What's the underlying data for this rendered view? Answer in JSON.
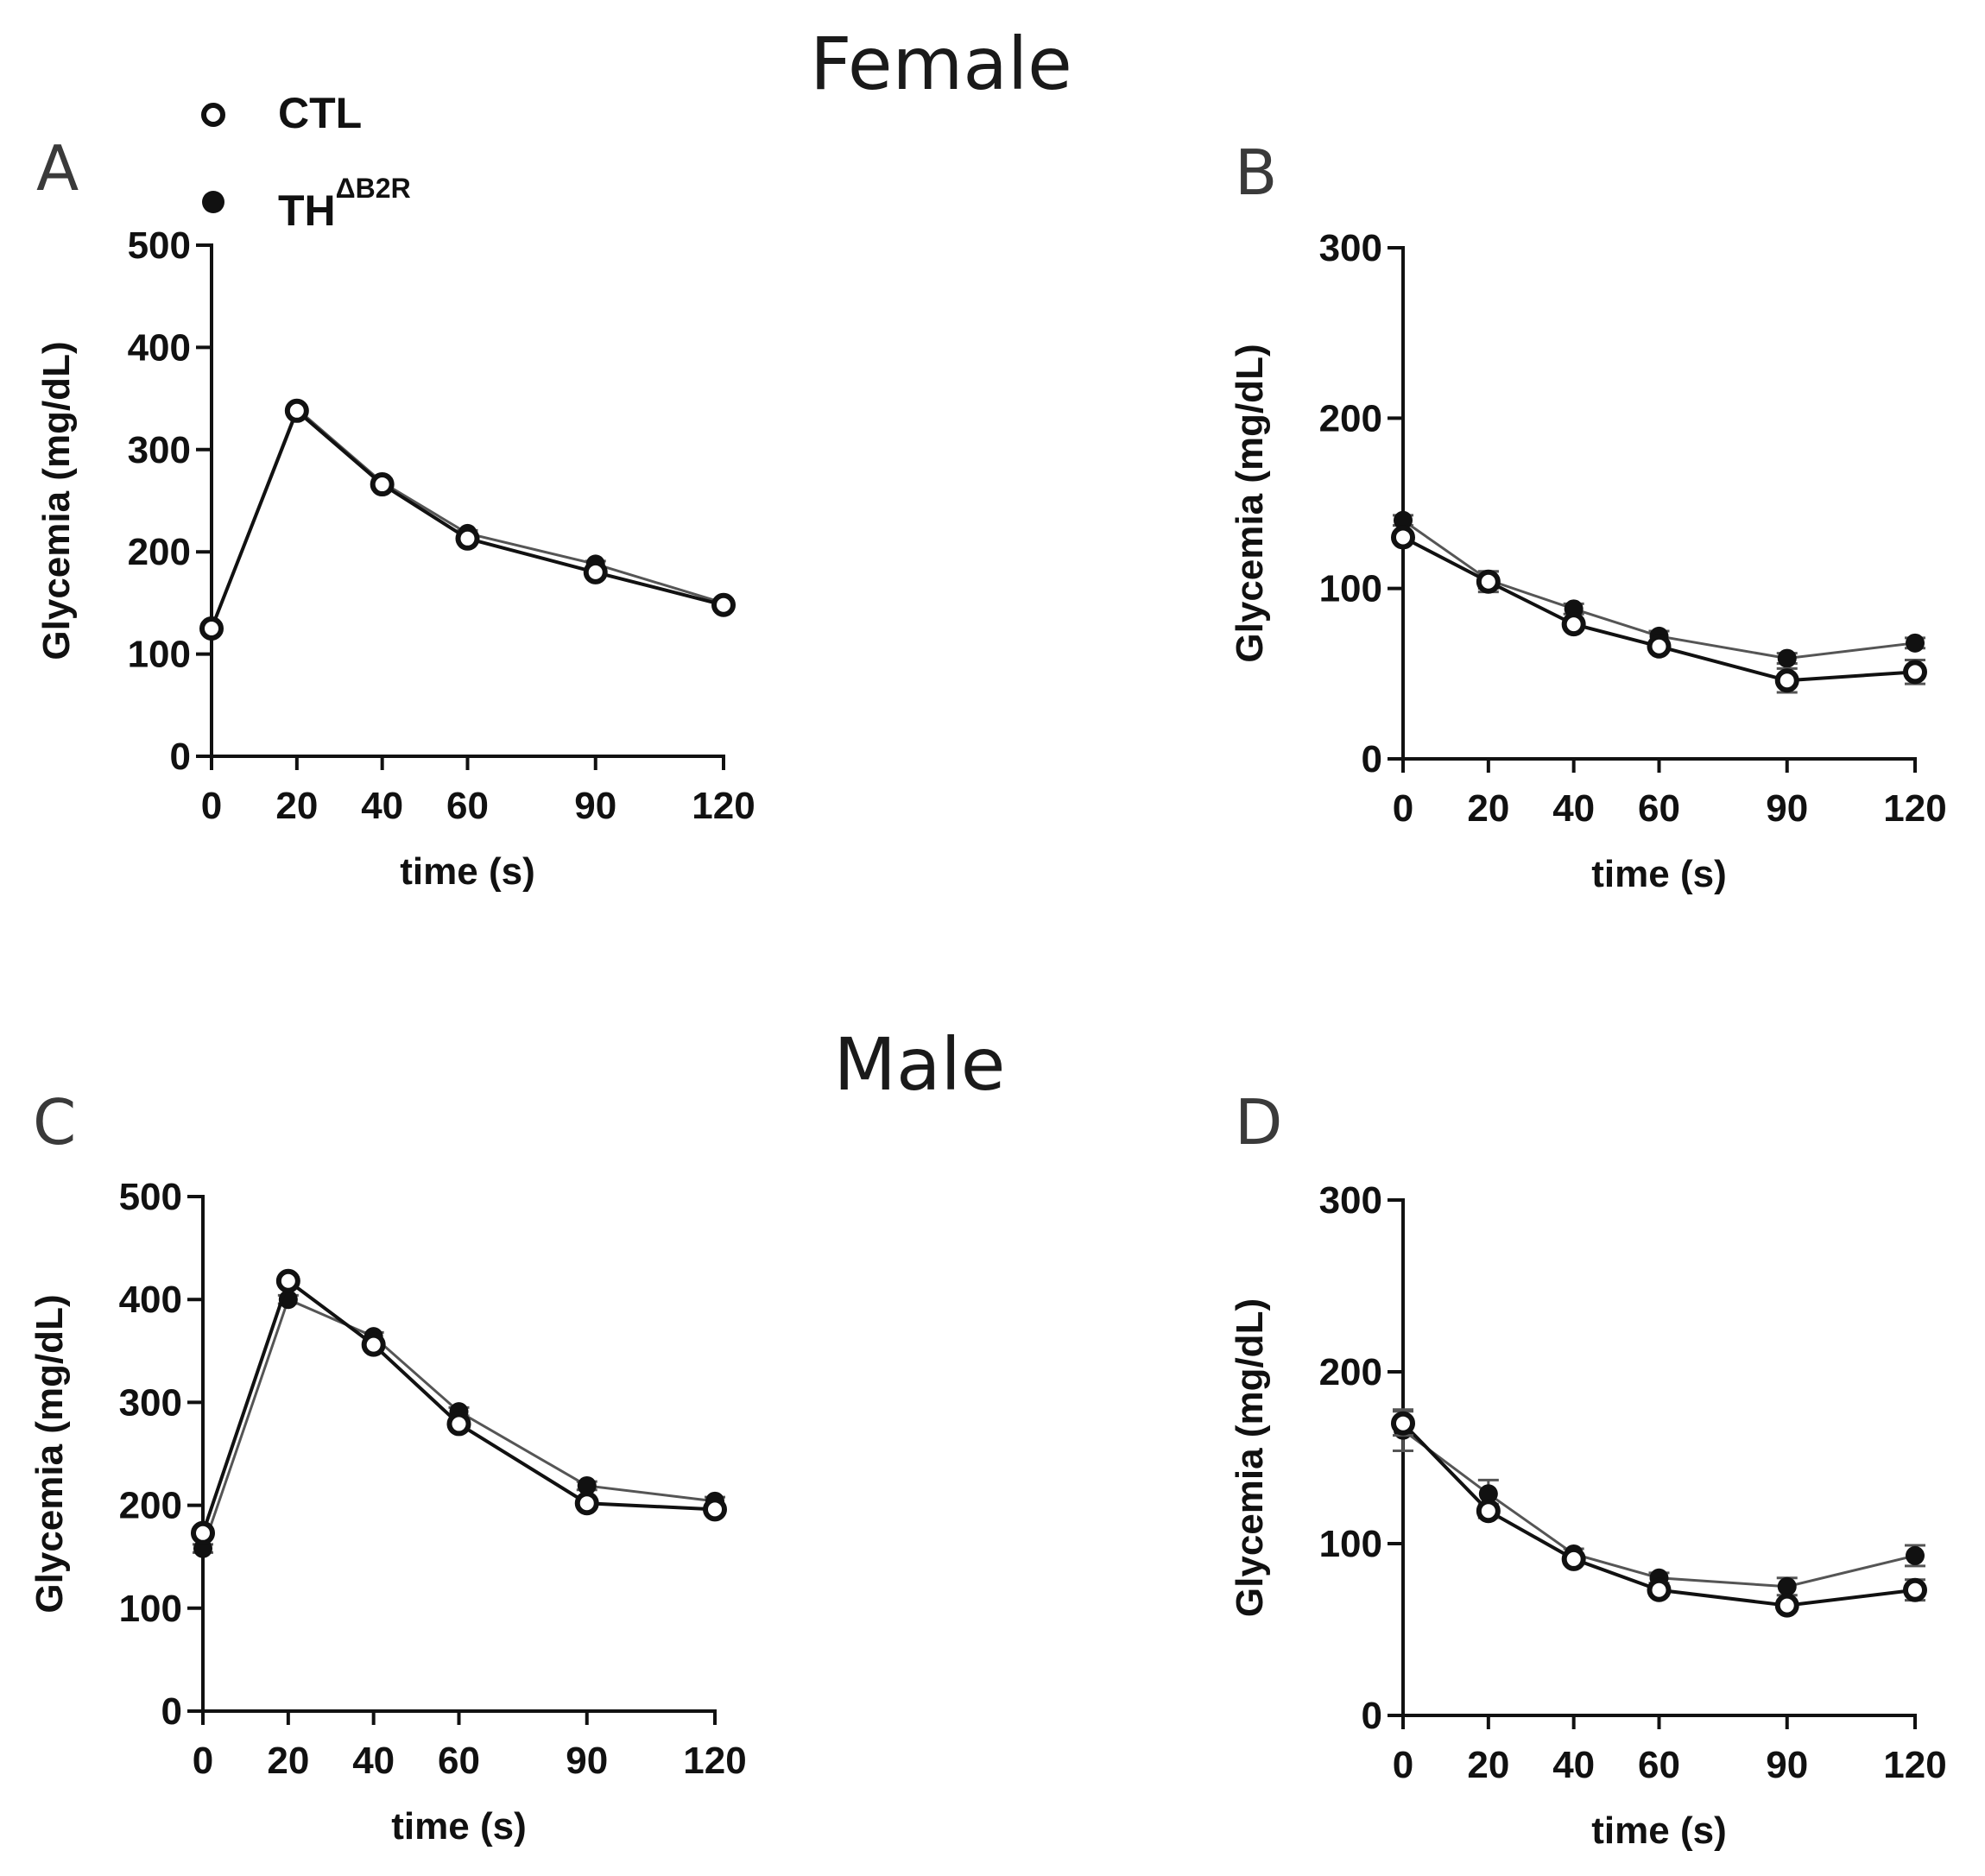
{
  "headings": {
    "female": "Female",
    "male": "Male"
  },
  "legend": {
    "ctl": {
      "label": "CTL"
    },
    "th": {
      "label": "TH",
      "superscript": "ΔB2R"
    }
  },
  "colors": {
    "ink": "#111111",
    "thin_line": "#555555"
  },
  "chart_data": [
    {
      "id": "A",
      "letter": "A",
      "type": "line",
      "xlabel": "time (s)",
      "ylabel": "Glycemia (mg/dL)",
      "ylim": [
        0,
        500
      ],
      "yticks": [
        0,
        100,
        200,
        300,
        400,
        500
      ],
      "xlim": [
        0,
        120
      ],
      "xticks": [
        0,
        20,
        40,
        60,
        90,
        120
      ],
      "grid": false,
      "series": [
        {
          "name": "CTL",
          "marker": "open",
          "x": [
            0,
            20,
            40,
            60,
            90,
            120
          ],
          "values": [
            125,
            338,
            266,
            213,
            180,
            148
          ],
          "err": [
            3,
            3,
            3,
            3,
            3,
            3
          ]
        },
        {
          "name": "THΔB2R",
          "marker": "filled",
          "x": [
            0,
            20,
            40,
            60,
            90,
            120
          ],
          "values": [
            125,
            340,
            268,
            218,
            188,
            150
          ],
          "err": [
            3,
            3,
            3,
            3,
            3,
            3
          ]
        }
      ]
    },
    {
      "id": "B",
      "letter": "B",
      "type": "line",
      "xlabel": "time (s)",
      "ylabel": "Glycemia (mg/dL)",
      "ylim": [
        0,
        300
      ],
      "yticks": [
        0,
        100,
        200,
        300
      ],
      "xlim": [
        0,
        120
      ],
      "xticks": [
        0,
        20,
        40,
        60,
        90,
        120
      ],
      "grid": false,
      "series": [
        {
          "name": "CTL",
          "marker": "open",
          "x": [
            0,
            20,
            40,
            60,
            90,
            120
          ],
          "values": [
            130,
            104,
            79,
            66,
            46,
            51
          ],
          "err": [
            3,
            6,
            3,
            3,
            7,
            7
          ]
        },
        {
          "name": "THΔB2R",
          "marker": "filled",
          "x": [
            0,
            20,
            40,
            60,
            90,
            120
          ],
          "values": [
            140,
            105,
            88,
            72,
            59,
            68
          ],
          "err": [
            3,
            5,
            3,
            3,
            3,
            3
          ]
        }
      ]
    },
    {
      "id": "C",
      "letter": "C",
      "type": "line",
      "xlabel": "time (s)",
      "ylabel": "Glycemia (mg/dL)",
      "ylim": [
        0,
        500
      ],
      "yticks": [
        0,
        100,
        200,
        300,
        400,
        500
      ],
      "xlim": [
        0,
        120
      ],
      "xticks": [
        0,
        20,
        40,
        60,
        90,
        120
      ],
      "grid": false,
      "series": [
        {
          "name": "CTL",
          "marker": "open",
          "x": [
            0,
            20,
            40,
            60,
            90,
            120
          ],
          "values": [
            173,
            418,
            356,
            279,
            202,
            196
          ],
          "err": [
            4,
            4,
            4,
            4,
            4,
            4
          ]
        },
        {
          "name": "THΔB2R",
          "marker": "filled",
          "x": [
            0,
            20,
            40,
            60,
            90,
            120
          ],
          "values": [
            158,
            400,
            364,
            291,
            219,
            204
          ],
          "err": [
            4,
            4,
            4,
            4,
            4,
            4
          ]
        }
      ]
    },
    {
      "id": "D",
      "letter": "D",
      "type": "line",
      "xlabel": "time (s)",
      "ylabel": "Glycemia (mg/dL)",
      "ylim": [
        0,
        300
      ],
      "yticks": [
        0,
        100,
        200,
        300
      ],
      "xlim": [
        0,
        120
      ],
      "xticks": [
        0,
        20,
        40,
        60,
        90,
        120
      ],
      "grid": false,
      "series": [
        {
          "name": "CTL",
          "marker": "open",
          "x": [
            0,
            20,
            40,
            60,
            90,
            120
          ],
          "values": [
            170,
            119,
            91,
            73,
            64,
            73
          ],
          "err": [
            7,
            4,
            3,
            3,
            3,
            6
          ]
        },
        {
          "name": "THΔB2R",
          "marker": "filled",
          "x": [
            0,
            20,
            40,
            60,
            90,
            120
          ],
          "values": [
            166,
            129,
            94,
            80,
            75,
            93
          ],
          "err": [
            12,
            8,
            3,
            3,
            5,
            6
          ]
        }
      ]
    }
  ]
}
